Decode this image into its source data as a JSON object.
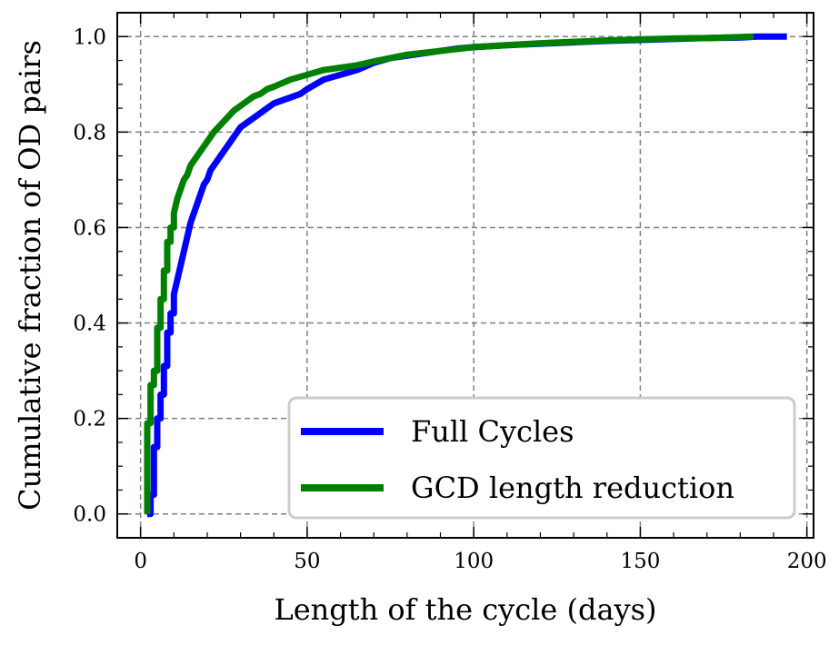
{
  "chart_data": {
    "type": "line",
    "title": "",
    "xlabel": "Length of the cycle (days)",
    "ylabel": "Cumulative fraction of OD pairs",
    "xlim": [
      -7,
      202
    ],
    "ylim": [
      -0.05,
      1.05
    ],
    "xticks": [
      0,
      50,
      100,
      150,
      200
    ],
    "yticks": [
      0.0,
      0.2,
      0.4,
      0.6,
      0.8,
      1.0
    ],
    "xtick_labels": [
      "0",
      "50",
      "100",
      "150",
      "200"
    ],
    "ytick_labels": [
      "0.0",
      "0.2",
      "0.4",
      "0.6",
      "0.8",
      "1.0"
    ],
    "grid": true,
    "legend_position": "bottom-right",
    "series": [
      {
        "name": "Full Cycles",
        "color": "#0000ff",
        "x": [
          2,
          3,
          3,
          4,
          4,
          5,
          5,
          6,
          6,
          7,
          7,
          8,
          8,
          9,
          9,
          10,
          10,
          11,
          12,
          13,
          14,
          15,
          16,
          17,
          18,
          19,
          20,
          21,
          22,
          24,
          26,
          28,
          30,
          32,
          34,
          36,
          38,
          40,
          42,
          44,
          46,
          48,
          50,
          55,
          60,
          65,
          70,
          75,
          80,
          85,
          90,
          95,
          100,
          110,
          120,
          130,
          140,
          150,
          160,
          170,
          180,
          185,
          194
        ],
        "y": [
          0.0,
          0.0,
          0.04,
          0.04,
          0.14,
          0.14,
          0.2,
          0.2,
          0.25,
          0.25,
          0.31,
          0.31,
          0.38,
          0.38,
          0.42,
          0.42,
          0.46,
          0.49,
          0.52,
          0.55,
          0.58,
          0.61,
          0.63,
          0.65,
          0.67,
          0.69,
          0.7,
          0.72,
          0.73,
          0.75,
          0.77,
          0.79,
          0.81,
          0.82,
          0.83,
          0.84,
          0.85,
          0.86,
          0.865,
          0.87,
          0.875,
          0.88,
          0.89,
          0.91,
          0.92,
          0.93,
          0.945,
          0.955,
          0.96,
          0.965,
          0.97,
          0.975,
          0.978,
          0.982,
          0.985,
          0.988,
          0.991,
          0.993,
          0.995,
          0.997,
          0.998,
          1.0,
          1.0
        ]
      },
      {
        "name": "GCD length reduction",
        "color": "#008000",
        "x": [
          2,
          2,
          3,
          3,
          4,
          4,
          5,
          5,
          6,
          6,
          7,
          7,
          8,
          8,
          9,
          9,
          10,
          10,
          11,
          12,
          13,
          14,
          15,
          16,
          17,
          18,
          19,
          20,
          22,
          24,
          26,
          28,
          30,
          32,
          34,
          36,
          38,
          40,
          45,
          50,
          55,
          60,
          65,
          70,
          75,
          80,
          90,
          100,
          110,
          120,
          130,
          140,
          150,
          160,
          170,
          180,
          184
        ],
        "y": [
          0.0,
          0.19,
          0.19,
          0.27,
          0.27,
          0.3,
          0.3,
          0.39,
          0.39,
          0.45,
          0.45,
          0.51,
          0.51,
          0.57,
          0.57,
          0.6,
          0.6,
          0.63,
          0.66,
          0.68,
          0.7,
          0.71,
          0.73,
          0.74,
          0.75,
          0.76,
          0.77,
          0.78,
          0.8,
          0.815,
          0.83,
          0.845,
          0.855,
          0.865,
          0.875,
          0.88,
          0.89,
          0.895,
          0.91,
          0.92,
          0.93,
          0.935,
          0.94,
          0.948,
          0.955,
          0.962,
          0.97,
          0.978,
          0.982,
          0.986,
          0.989,
          0.992,
          0.994,
          0.996,
          0.997,
          0.999,
          1.0
        ]
      }
    ]
  }
}
